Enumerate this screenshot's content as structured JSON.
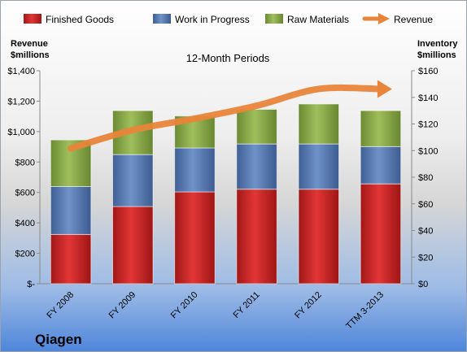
{
  "chart_data": {
    "type": "bar",
    "stacked": true,
    "subtitle": "12-Month Periods",
    "company": "Qiagen",
    "categories": [
      "FY 2008",
      "FY 2009",
      "FY 2010",
      "FY 2011",
      "FY 2012",
      "TTM 3-2013"
    ],
    "series": [
      {
        "name": "Finished Goods",
        "axis": "right",
        "color": "#d42828",
        "values": [
          37,
          58,
          69,
          71,
          71,
          75
        ]
      },
      {
        "name": "Work in Progress",
        "axis": "right",
        "color": "#5b7fb8",
        "values": [
          36,
          39,
          33,
          34,
          34,
          28
        ]
      },
      {
        "name": "Raw Materials",
        "axis": "right",
        "color": "#8fae4e",
        "values": [
          35,
          33,
          24,
          26,
          30,
          27
        ]
      }
    ],
    "line_series": {
      "name": "Revenue",
      "axis": "left",
      "color": "#e8853a",
      "values": [
        890,
        1010,
        1085,
        1170,
        1280,
        1280
      ]
    },
    "y_left": {
      "label_line1": "Revenue",
      "label_line2": "$millions",
      "min": 0,
      "max": 1400,
      "step": 200,
      "tick_labels": [
        "$-",
        "$200",
        "$400",
        "$600",
        "$800",
        "$1,000",
        "$1,200",
        "$1,400"
      ]
    },
    "y_right": {
      "label_line1": "Inventory",
      "label_line2": "$millions",
      "min": 0,
      "max": 160,
      "step": 20,
      "tick_labels": [
        "$0",
        "$20",
        "$40",
        "$60",
        "$80",
        "$100",
        "$120",
        "$140",
        "$160"
      ]
    },
    "legend_position": "top",
    "grid": false
  }
}
